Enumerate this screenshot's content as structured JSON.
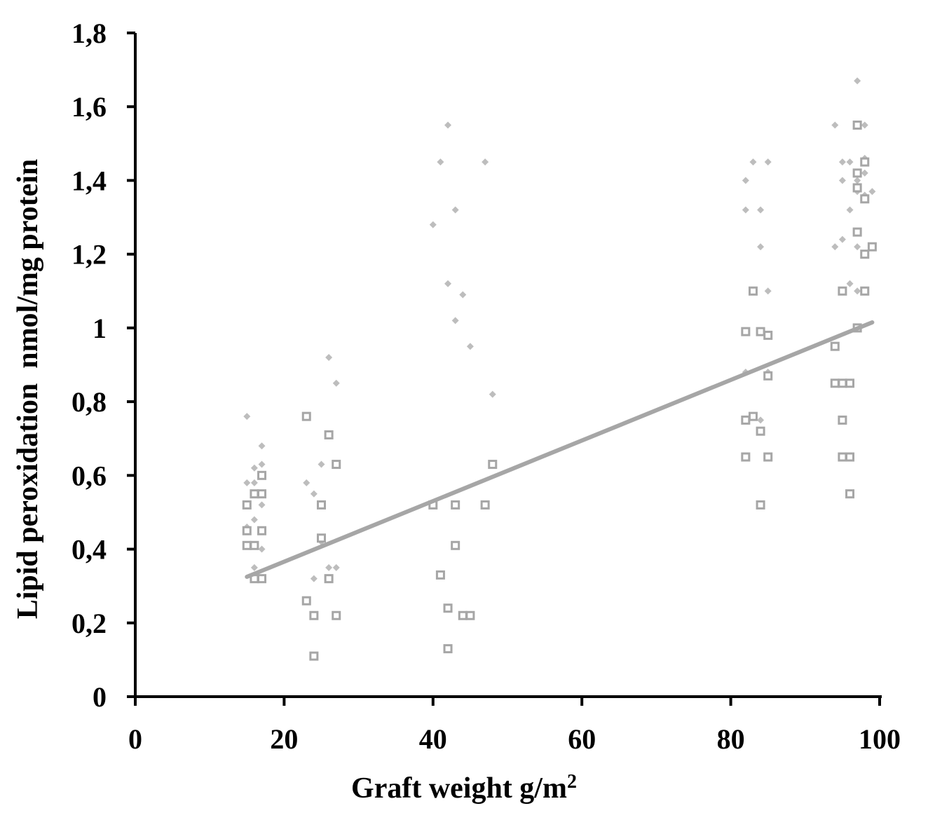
{
  "chart_data": {
    "type": "scatter",
    "xlabel": "Graft weight g/m",
    "xlabel_superscript": "2",
    "ylabel": "Lipid peroxidation  nmol/mg protein",
    "xlim": [
      0,
      100
    ],
    "ylim": [
      0,
      1.8
    ],
    "x_ticks": [
      "0",
      "20",
      "40",
      "60",
      "80",
      "100"
    ],
    "y_ticks": [
      "0",
      "0,2",
      "0,4",
      "0,6",
      "0,8",
      "1",
      "1,2",
      "1,4",
      "1,6",
      "1,8"
    ],
    "grid": false,
    "colors": {
      "diamond": "#bdbdbd",
      "square": "#a6a6a6",
      "trendline": "#a6a6a6",
      "axis": "#000000"
    },
    "series": [
      {
        "marker": "diamond",
        "x": [
          15,
          15,
          15,
          16,
          16,
          16,
          16,
          17,
          17,
          17,
          17,
          23,
          24,
          24,
          25,
          25,
          26,
          26,
          27,
          27,
          40,
          41,
          42,
          42,
          43,
          43,
          44,
          45,
          47,
          48,
          82,
          82,
          82,
          83,
          84,
          84,
          84,
          85,
          85,
          85,
          94,
          94,
          95,
          95,
          95,
          96,
          96,
          96,
          97,
          97,
          97,
          97,
          97,
          98,
          98,
          98,
          98,
          98,
          99
        ],
        "y": [
          0.76,
          0.58,
          0.46,
          0.62,
          0.58,
          0.48,
          0.35,
          0.68,
          0.63,
          0.52,
          0.4,
          0.58,
          0.55,
          0.32,
          0.63,
          0.42,
          0.92,
          0.35,
          0.85,
          0.35,
          1.28,
          1.45,
          1.55,
          1.12,
          1.32,
          1.02,
          1.09,
          0.95,
          1.45,
          0.82,
          1.4,
          1.32,
          0.88,
          1.45,
          1.32,
          1.22,
          0.75,
          1.45,
          1.1,
          0.88,
          1.55,
          1.22,
          1.45,
          1.4,
          1.24,
          1.45,
          1.32,
          1.12,
          1.67,
          1.4,
          1.37,
          1.22,
          1.1,
          1.55,
          1.46,
          1.42,
          1.36,
          1.1,
          1.37
        ]
      },
      {
        "marker": "square",
        "x": [
          15,
          15,
          15,
          16,
          16,
          16,
          17,
          17,
          17,
          17,
          23,
          23,
          24,
          24,
          25,
          25,
          26,
          26,
          27,
          27,
          40,
          41,
          42,
          42,
          43,
          43,
          44,
          45,
          47,
          48,
          82,
          82,
          82,
          83,
          83,
          84,
          84,
          84,
          85,
          85,
          85,
          94,
          94,
          95,
          95,
          95,
          95,
          96,
          96,
          96,
          97,
          97,
          97,
          97,
          97,
          98,
          98,
          98,
          98,
          99
        ],
        "y": [
          0.52,
          0.45,
          0.41,
          0.55,
          0.41,
          0.32,
          0.6,
          0.55,
          0.45,
          0.32,
          0.76,
          0.26,
          0.22,
          0.11,
          0.52,
          0.43,
          0.71,
          0.32,
          0.63,
          0.22,
          0.52,
          0.33,
          0.24,
          0.13,
          0.52,
          0.41,
          0.22,
          0.22,
          0.52,
          0.63,
          0.99,
          0.75,
          0.65,
          1.1,
          0.76,
          0.99,
          0.72,
          0.52,
          0.98,
          0.87,
          0.65,
          0.95,
          0.85,
          1.1,
          0.85,
          0.75,
          0.65,
          0.85,
          0.65,
          0.55,
          1.55,
          1.42,
          1.38,
          1.26,
          1.0,
          1.45,
          1.35,
          1.2,
          1.1,
          1.22
        ]
      }
    ],
    "trendline": {
      "x": [
        15,
        99
      ],
      "y": [
        0.325,
        1.015
      ]
    }
  }
}
